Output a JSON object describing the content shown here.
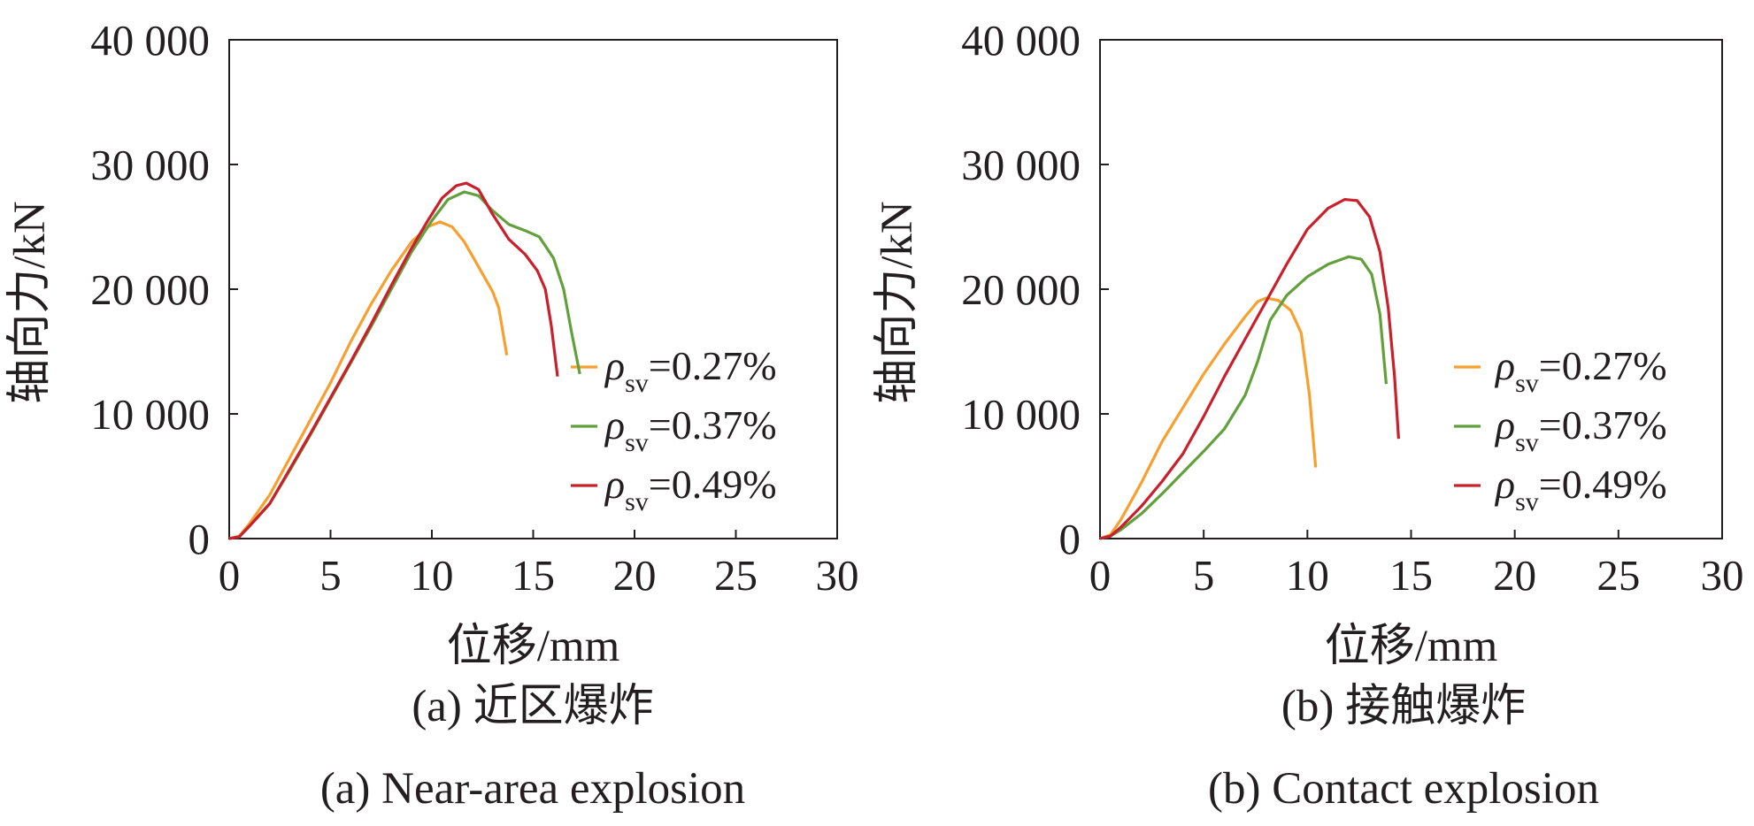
{
  "chart_data": [
    {
      "type": "line",
      "caption_cn": "(a) 近区爆炸",
      "caption_en": "(a) Near-area explosion",
      "xlabel": "位移/mm",
      "ylabel": "轴向力/kN",
      "xlim": [
        0,
        30
      ],
      "ylim": [
        0,
        40000
      ],
      "x_ticks": [
        "0",
        "5",
        "10",
        "15",
        "20",
        "25",
        "30"
      ],
      "y_ticks": [
        "0",
        "10 000",
        "20 000",
        "30 000",
        "40 000"
      ],
      "legend_position": "lower-right",
      "series": [
        {
          "name": "ρsv=0.27%",
          "symbol": "ρ",
          "subscript": "sv",
          "value_text": "=0.27%",
          "color": "#f7a030",
          "points": [
            [
              0,
              0
            ],
            [
              0.5,
              200
            ],
            [
              1,
              1200
            ],
            [
              2,
              3500
            ],
            [
              3,
              6500
            ],
            [
              4,
              9500
            ],
            [
              5,
              12500
            ],
            [
              6,
              15800
            ],
            [
              7,
              18800
            ],
            [
              8,
              21500
            ],
            [
              9,
              23800
            ],
            [
              9.8,
              25000
            ],
            [
              10.4,
              25400
            ],
            [
              11,
              25000
            ],
            [
              11.6,
              23800
            ],
            [
              12.3,
              21800
            ],
            [
              13,
              19800
            ],
            [
              13.3,
              18500
            ],
            [
              13.7,
              14700
            ]
          ]
        },
        {
          "name": "ρsv=0.37%",
          "symbol": "ρ",
          "subscript": "sv",
          "value_text": "=0.37%",
          "color": "#62a03b",
          "points": [
            [
              0,
              0
            ],
            [
              0.5,
              150
            ],
            [
              1,
              1000
            ],
            [
              2,
              2800
            ],
            [
              3,
              5500
            ],
            [
              4,
              8300
            ],
            [
              5,
              11200
            ],
            [
              6,
              14100
            ],
            [
              7,
              17000
            ],
            [
              8,
              20000
            ],
            [
              9,
              23000
            ],
            [
              10,
              25500
            ],
            [
              10.8,
              27200
            ],
            [
              11.6,
              27800
            ],
            [
              12.3,
              27500
            ],
            [
              13,
              26300
            ],
            [
              13.8,
              25200
            ],
            [
              14.6,
              24700
            ],
            [
              15.3,
              24200
            ],
            [
              16,
              22500
            ],
            [
              16.5,
              20000
            ],
            [
              16.9,
              16500
            ],
            [
              17.3,
              13200
            ]
          ]
        },
        {
          "name": "ρsv=0.49%",
          "symbol": "ρ",
          "subscript": "sv",
          "value_text": "=0.49%",
          "color": "#c9202b",
          "points": [
            [
              0,
              0
            ],
            [
              0.5,
              150
            ],
            [
              1,
              1000
            ],
            [
              2,
              2800
            ],
            [
              3,
              5600
            ],
            [
              4,
              8400
            ],
            [
              5,
              11300
            ],
            [
              6,
              14200
            ],
            [
              7,
              17200
            ],
            [
              8,
              20300
            ],
            [
              9,
              23300
            ],
            [
              9.8,
              25500
            ],
            [
              10.5,
              27300
            ],
            [
              11.2,
              28300
            ],
            [
              11.7,
              28500
            ],
            [
              12.3,
              28000
            ],
            [
              13,
              26000
            ],
            [
              13.8,
              24000
            ],
            [
              14.6,
              22800
            ],
            [
              15.2,
              21500
            ],
            [
              15.6,
              20000
            ],
            [
              15.9,
              17000
            ],
            [
              16.2,
              13000
            ]
          ]
        }
      ]
    },
    {
      "type": "line",
      "caption_cn": "(b) 接触爆炸",
      "caption_en": "(b) Contact explosion",
      "xlabel": "位移/mm",
      "ylabel": "轴向力/kN",
      "xlim": [
        0,
        30
      ],
      "ylim": [
        0,
        40000
      ],
      "x_ticks": [
        "0",
        "5",
        "10",
        "15",
        "20",
        "25",
        "30"
      ],
      "y_ticks": [
        "0",
        "10 000",
        "20 000",
        "30 000",
        "40 000"
      ],
      "legend_position": "lower-right",
      "series": [
        {
          "name": "ρsv=0.27%",
          "symbol": "ρ",
          "subscript": "sv",
          "value_text": "=0.27%",
          "color": "#f7a030",
          "points": [
            [
              0,
              0
            ],
            [
              0.5,
              300
            ],
            [
              1,
              1500
            ],
            [
              2,
              4500
            ],
            [
              3,
              7800
            ],
            [
              4,
              10500
            ],
            [
              5,
              13200
            ],
            [
              6,
              15600
            ],
            [
              7,
              17800
            ],
            [
              7.6,
              19000
            ],
            [
              8,
              19300
            ],
            [
              8.6,
              19100
            ],
            [
              9.2,
              18300
            ],
            [
              9.7,
              16500
            ],
            [
              10.1,
              11500
            ],
            [
              10.4,
              5700
            ]
          ]
        },
        {
          "name": "ρsv=0.37%",
          "symbol": "ρ",
          "subscript": "sv",
          "value_text": "=0.37%",
          "color": "#62a03b",
          "points": [
            [
              0,
              0
            ],
            [
              0.5,
              200
            ],
            [
              1,
              700
            ],
            [
              2,
              2000
            ],
            [
              3,
              3600
            ],
            [
              4,
              5300
            ],
            [
              5,
              7000
            ],
            [
              6,
              8800
            ],
            [
              7,
              11500
            ],
            [
              7.6,
              14200
            ],
            [
              8.2,
              17500
            ],
            [
              9,
              19500
            ],
            [
              10,
              21000
            ],
            [
              11,
              22000
            ],
            [
              12,
              22600
            ],
            [
              12.6,
              22400
            ],
            [
              13.1,
              21200
            ],
            [
              13.5,
              18000
            ],
            [
              13.8,
              12400
            ]
          ]
        },
        {
          "name": "ρsv=0.49%",
          "symbol": "ρ",
          "subscript": "sv",
          "value_text": "=0.49%",
          "color": "#c9202b",
          "points": [
            [
              0,
              0
            ],
            [
              0.5,
              200
            ],
            [
              1,
              900
            ],
            [
              2,
              2600
            ],
            [
              3,
              4600
            ],
            [
              4,
              6800
            ],
            [
              5,
              9800
            ],
            [
              6,
              13000
            ],
            [
              7,
              16000
            ],
            [
              8,
              19000
            ],
            [
              9,
              22000
            ],
            [
              10,
              24800
            ],
            [
              11,
              26500
            ],
            [
              11.8,
              27200
            ],
            [
              12.4,
              27100
            ],
            [
              13,
              25800
            ],
            [
              13.5,
              23000
            ],
            [
              13.9,
              18500
            ],
            [
              14.2,
              13000
            ],
            [
              14.4,
              8000
            ]
          ]
        }
      ]
    }
  ]
}
